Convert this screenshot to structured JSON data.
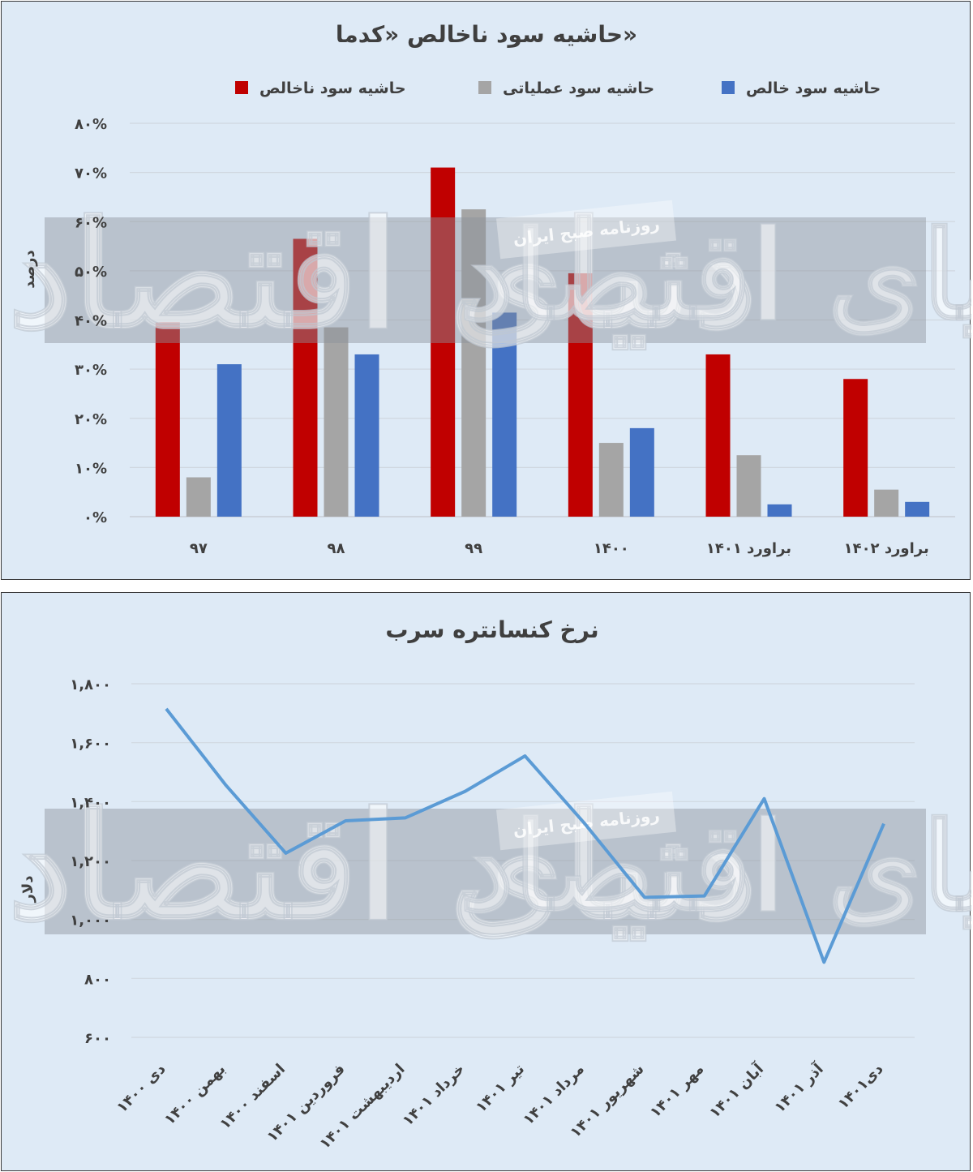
{
  "chart_data": [
    {
      "type": "bar",
      "title": "حاشیه سود ناخالص «کدما»",
      "ylabel": "درصد",
      "xlabel": "",
      "ylim": [
        0,
        80
      ],
      "yticks": [
        "۰%",
        "۱۰%",
        "۲۰%",
        "۳۰%",
        "۴۰%",
        "۵۰%",
        "۶۰%",
        "۷۰%",
        "۸۰%"
      ],
      "categories": [
        "۹۷",
        "۹۸",
        "۹۹",
        "۱۴۰۰",
        "براورد ۱۴۰۱",
        "براورد ۱۴۰۲"
      ],
      "series": [
        {
          "name": "حاشیه سود ناخالص",
          "color": "#c00000",
          "values": [
            39.5,
            56.5,
            71.0,
            49.5,
            33.0,
            28.0
          ]
        },
        {
          "name": "حاشیه سود عملیاتی",
          "color": "#a5a5a5",
          "values": [
            8.0,
            38.5,
            62.5,
            15.0,
            12.5,
            5.5
          ]
        },
        {
          "name": "حاشیه سود خالص",
          "color": "#4472c4",
          "values": [
            31.0,
            33.0,
            41.5,
            18.0,
            2.5,
            3.0
          ]
        }
      ],
      "legend": "top",
      "grid": true
    },
    {
      "type": "line",
      "title": "نرخ کنسانتره سرب",
      "ylabel": "دلار",
      "xlabel": "",
      "ylim": [
        600,
        1800
      ],
      "yticks": [
        "۶۰۰",
        "۸۰۰",
        "۱,۰۰۰",
        "۱,۲۰۰",
        "۱,۴۰۰",
        "۱,۶۰۰",
        "۱,۸۰۰"
      ],
      "categories": [
        "دی ۱۴۰۰",
        "بهمن ۱۴۰۰",
        "اسفند ۱۴۰۰",
        "فروردین ۱۴۰۱",
        "اردیبهشت ۱۴۰۱",
        "خرداد ۱۴۰۱",
        "تیر ۱۴۰۱",
        "مرداد ۱۴۰۱",
        "شهریور ۱۴۰۱",
        "مهر ۱۴۰۱",
        "آبان ۱۴۰۱",
        "آذر ۱۴۰۱",
        "دی۱۴۰۱"
      ],
      "series": [
        {
          "name": "",
          "color": "#5b9bd5",
          "values": [
            1715,
            1455,
            1225,
            1335,
            1345,
            1435,
            1555,
            1325,
            1075,
            1080,
            1410,
            855,
            1325
          ]
        }
      ],
      "grid": true
    }
  ],
  "watermark": {
    "main": "دنیای اقتصاد",
    "stamp": "روزنامه صبح ایران"
  }
}
